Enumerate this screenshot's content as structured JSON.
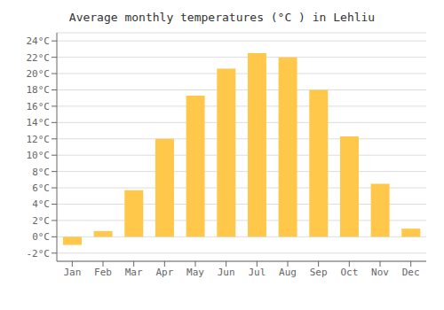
{
  "chart_data": {
    "type": "bar",
    "title": "Average monthly temperatures (°C ) in Lehliu",
    "categories": [
      "Jan",
      "Feb",
      "Mar",
      "Apr",
      "May",
      "Jun",
      "Jul",
      "Aug",
      "Sep",
      "Oct",
      "Nov",
      "Dec"
    ],
    "values": [
      -1.0,
      0.7,
      5.7,
      12.0,
      17.3,
      20.6,
      22.5,
      22.0,
      18.0,
      12.3,
      6.5,
      1.0
    ],
    "color": "#FFC84A",
    "ylim": [
      -3,
      25
    ],
    "yticks": [
      {
        "value": -2,
        "label": "-2°C"
      },
      {
        "value": 0,
        "label": "0°C"
      },
      {
        "value": 2,
        "label": "2°C"
      },
      {
        "value": 4,
        "label": "4°C"
      },
      {
        "value": 6,
        "label": "6°C"
      },
      {
        "value": 8,
        "label": "8°C"
      },
      {
        "value": 10,
        "label": "10°C"
      },
      {
        "value": 12,
        "label": "12°C"
      },
      {
        "value": 14,
        "label": "14°C"
      },
      {
        "value": 16,
        "label": "16°C"
      },
      {
        "value": 18,
        "label": "18°C"
      },
      {
        "value": 20,
        "label": "20°C"
      },
      {
        "value": 22,
        "label": "22°C"
      },
      {
        "value": 24,
        "label": "24°C"
      }
    ],
    "grid": true
  }
}
